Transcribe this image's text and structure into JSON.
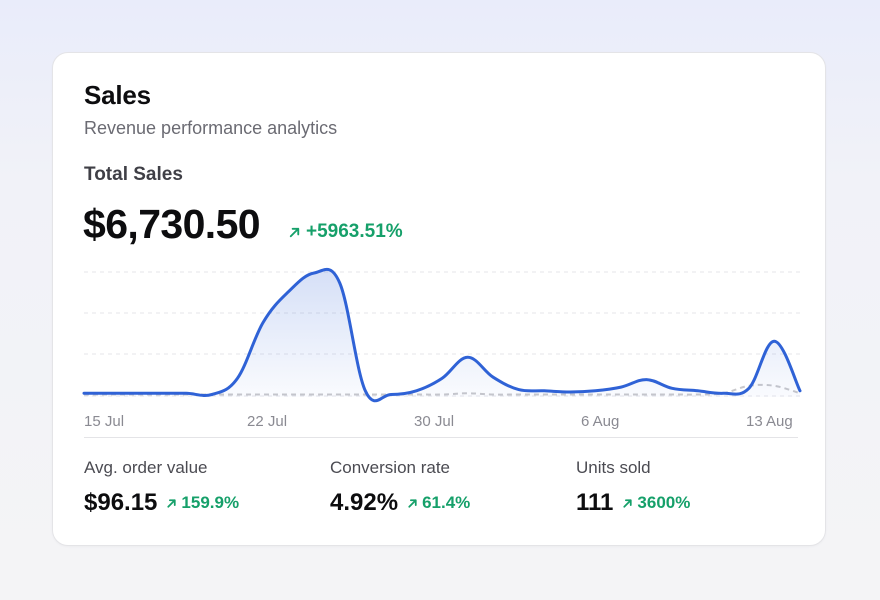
{
  "card": {
    "title": "Sales",
    "subtitle": "Revenue performance analytics",
    "total_label": "Total Sales",
    "total_value": "$6,730.50",
    "total_change": "+5963.51%",
    "change_icon": "arrow-up-right-icon"
  },
  "colors": {
    "accent": "#2f62d6",
    "positive": "#16a06a",
    "comparison": "#c8c8cc"
  },
  "chart_data": {
    "type": "area",
    "x_tick_labels": [
      "15 Jul",
      "22 Jul",
      "30 Jul",
      "6 Aug",
      "13 Aug"
    ],
    "grid": true,
    "series": [
      {
        "values": [
          0.03,
          0.03,
          0.03,
          0.03,
          0.03,
          0.02,
          0.15,
          0.6,
          0.85,
          1.0,
          0.92,
          0.05,
          0.02,
          0.05,
          0.15,
          0.32,
          0.16,
          0.06,
          0.05,
          0.04,
          0.05,
          0.08,
          0.14,
          0.07,
          0.05,
          0.03,
          0.07,
          0.45,
          0.05
        ],
        "style": "solid"
      },
      {
        "values": [
          0.02,
          0.02,
          0.02,
          0.02,
          0.02,
          0.02,
          0.02,
          0.02,
          0.02,
          0.02,
          0.02,
          0.02,
          0.02,
          0.02,
          0.02,
          0.03,
          0.02,
          0.02,
          0.02,
          0.02,
          0.02,
          0.02,
          0.02,
          0.02,
          0.02,
          0.03,
          0.09,
          0.09,
          0.03
        ],
        "style": "dashed"
      }
    ]
  },
  "metrics": [
    {
      "label": "Avg. order value",
      "value": "$96.15",
      "change": "159.9%"
    },
    {
      "label": "Conversion rate",
      "value": "4.92%",
      "change": "61.4%"
    },
    {
      "label": "Units sold",
      "value": "111",
      "change": "3600%"
    }
  ]
}
